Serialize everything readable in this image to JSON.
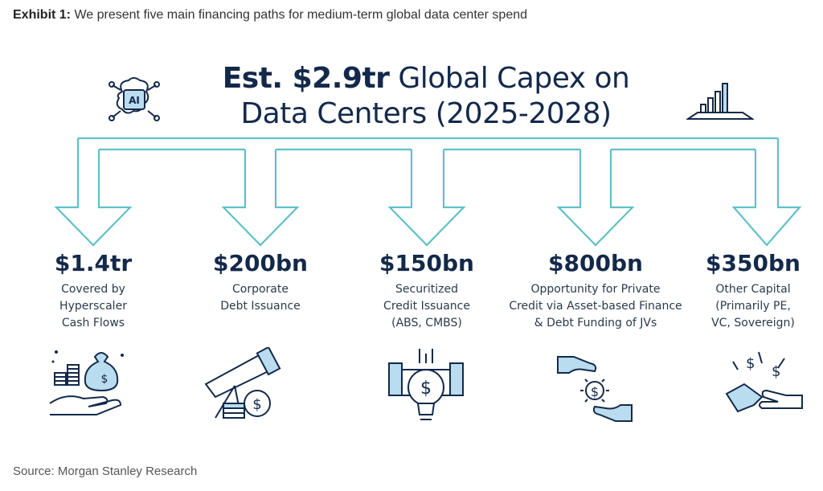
{
  "exhibit": {
    "label": "Exhibit 1:",
    "text": "We present five main financing paths for medium-term global data center spend"
  },
  "headline": {
    "bold": "Est. $2.9tr",
    "line1_rest": "Global Capex on",
    "line2": "Data Centers (2025-2028)"
  },
  "ai_chip_label": "AI",
  "colors": {
    "arrow": "#5fc1c7",
    "navy": "#13294b",
    "icon_fill": "#b9dcef"
  },
  "paths": [
    {
      "amount": "$1.4tr",
      "lines": [
        "Covered by",
        "Hyperscaler",
        "Cash Flows"
      ],
      "icon": "money-bag-hand-icon"
    },
    {
      "amount": "$200bn",
      "lines": [
        "Corporate",
        "Debt Issuance"
      ],
      "icon": "telescope-coins-icon"
    },
    {
      "amount": "$150bn",
      "lines": [
        "Securitized",
        "Credit Issuance",
        "(ABS, CMBS)"
      ],
      "icon": "gear-bulb-dollar-icon"
    },
    {
      "amount": "$800bn",
      "lines": [
        "Opportunity for Private",
        "Credit via Asset-based Finance",
        "& Debt Funding of JVs"
      ],
      "icon": "hands-dollar-icon"
    },
    {
      "amount": "$350bn",
      "lines": [
        "Other Capital",
        "(Primarily PE,",
        "VC, Sovereign)"
      ],
      "icon": "hands-dollars-icon"
    }
  ],
  "source": "Source: Morgan Stanley Research"
}
